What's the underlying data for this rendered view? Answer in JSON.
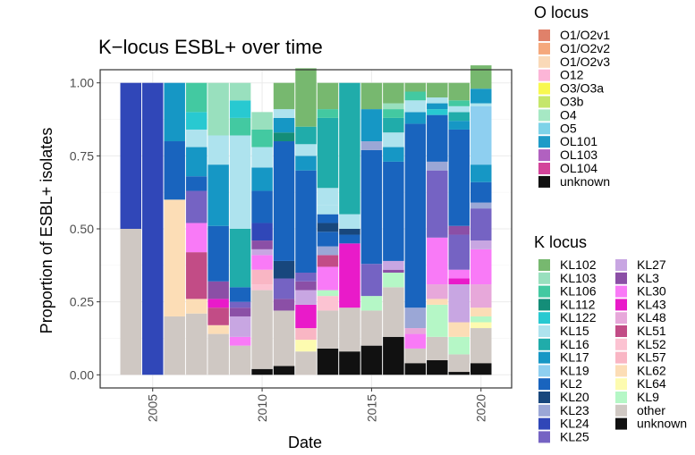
{
  "chart_data": {
    "type": "bar",
    "stacked": true,
    "title": "K−locus ESBL+ over time",
    "xlabel": "Date",
    "ylabel": "Proportion of ESBL+ isolates",
    "xlim": [
      2002.6,
      2021.4
    ],
    "ylim": [
      -0.045,
      1.045
    ],
    "x_ticks": [
      2005,
      2010,
      2015,
      2020
    ],
    "x_tick_labels": [
      "2005",
      "2010",
      "2015",
      "2020"
    ],
    "y_ticks": [
      0,
      0.25,
      0.5,
      0.75,
      1
    ],
    "y_tick_labels": [
      "0.00",
      "0.25",
      "0.50",
      "0.75",
      "1.00"
    ],
    "legend_o": {
      "title": "O locus",
      "items": [
        {
          "label": "O1/O2v1",
          "color": "#E0816A"
        },
        {
          "label": "O1/O2v2",
          "color": "#F5A87C"
        },
        {
          "label": "O1/O2v3",
          "color": "#FAD9B8"
        },
        {
          "label": "O12",
          "color": "#FCB5D7"
        },
        {
          "label": "O3/O3a",
          "color": "#F8F850"
        },
        {
          "label": "O3b",
          "color": "#C5E66B"
        },
        {
          "label": "O4",
          "color": "#A6E8C4"
        },
        {
          "label": "O5",
          "color": "#7ED3E8"
        },
        {
          "label": "OL101",
          "color": "#1E9BC7"
        },
        {
          "label": "OL103",
          "color": "#B161C0"
        },
        {
          "label": "OL104",
          "color": "#D3449A"
        },
        {
          "label": "unknown",
          "color": "#111111"
        }
      ]
    },
    "legend_k": {
      "title": "K locus",
      "columns": [
        [
          {
            "label": "KL102",
            "color": "#77B86F"
          },
          {
            "label": "KL103",
            "color": "#99E0BE"
          },
          {
            "label": "KL106",
            "color": "#43C9A1"
          },
          {
            "label": "KL112",
            "color": "#148D78"
          },
          {
            "label": "KL122",
            "color": "#28C9D1"
          },
          {
            "label": "KL15",
            "color": "#AEE3EE"
          },
          {
            "label": "KL16",
            "color": "#20ACAA"
          },
          {
            "label": "KL17",
            "color": "#1697C5"
          },
          {
            "label": "KL19",
            "color": "#8ECFF0"
          },
          {
            "label": "KL2",
            "color": "#1964BE"
          },
          {
            "label": "KL20",
            "color": "#18477D"
          },
          {
            "label": "KL23",
            "color": "#9BA7D6"
          },
          {
            "label": "KL24",
            "color": "#3047B8"
          },
          {
            "label": "KL25",
            "color": "#7563C3"
          }
        ],
        [
          {
            "label": "KL27",
            "color": "#C8A6E2"
          },
          {
            "label": "KL3",
            "color": "#8B4FA6"
          },
          {
            "label": "KL30",
            "color": "#F97AF7"
          },
          {
            "label": "KL43",
            "color": "#E91BC9"
          },
          {
            "label": "KL48",
            "color": "#E7A8DA"
          },
          {
            "label": "KL51",
            "color": "#C24C86"
          },
          {
            "label": "KL52",
            "color": "#FCC3D2"
          },
          {
            "label": "KL57",
            "color": "#F9B6C4"
          },
          {
            "label": "KL62",
            "color": "#FCDDB6"
          },
          {
            "label": "KL64",
            "color": "#FDFBB0"
          },
          {
            "label": "KL9",
            "color": "#B5F7C6"
          },
          {
            "label": "other",
            "color": "#CFC8C3"
          },
          {
            "label": "unknown",
            "color": "#111111"
          }
        ]
      ]
    },
    "bars": [
      {
        "x": 2004,
        "segments": [
          [
            "other",
            0.5
          ],
          [
            "KL24",
            0.5
          ]
        ]
      },
      {
        "x": 2005,
        "segments": [
          [
            "KL24",
            1.0
          ]
        ]
      },
      {
        "x": 2006,
        "segments": [
          [
            "other",
            0.2
          ],
          [
            "KL62",
            0.4
          ],
          [
            "KL2",
            0.2
          ],
          [
            "KL17",
            0.2
          ]
        ]
      },
      {
        "x": 2007,
        "segments": [
          [
            "other",
            0.21
          ],
          [
            "KL62",
            0.05
          ],
          [
            "KL51",
            0.16
          ],
          [
            "KL30",
            0.1
          ],
          [
            "KL25",
            0.11
          ],
          [
            "KL2",
            0.05
          ],
          [
            "KL17",
            0.1
          ],
          [
            "KL15",
            0.06
          ],
          [
            "KL122",
            0.06
          ],
          [
            "KL106",
            0.1
          ]
        ]
      },
      {
        "x": 2008,
        "segments": [
          [
            "other",
            0.14
          ],
          [
            "KL62",
            0.03
          ],
          [
            "KL51",
            0.06
          ],
          [
            "KL43",
            0.03
          ],
          [
            "KL3",
            0.06
          ],
          [
            "KL2",
            0.19
          ],
          [
            "KL17",
            0.21
          ],
          [
            "KL15",
            0.1
          ],
          [
            "KL103",
            0.18
          ]
        ]
      },
      {
        "x": 2009,
        "segments": [
          [
            "other",
            0.1
          ],
          [
            "KL30",
            0.03
          ],
          [
            "KL27",
            0.07
          ],
          [
            "KL3",
            0.03
          ],
          [
            "KL25",
            0.02
          ],
          [
            "KL2",
            0.05
          ],
          [
            "KL16",
            0.2
          ],
          [
            "KL15",
            0.32
          ],
          [
            "KL106",
            0.06
          ],
          [
            "KL122",
            0.06
          ],
          [
            "KL103",
            0.06
          ]
        ]
      },
      {
        "x": 2010,
        "segments": [
          [
            "unknown",
            0.02
          ],
          [
            "other",
            0.27
          ],
          [
            "KL52",
            0.02
          ],
          [
            "KL57",
            0.05
          ],
          [
            "KL30",
            0.05
          ],
          [
            "KL27",
            0.02
          ],
          [
            "KL3",
            0.03
          ],
          [
            "KL24",
            0.06
          ],
          [
            "KL2",
            0.11
          ],
          [
            "KL17",
            0.08
          ],
          [
            "KL15",
            0.07
          ],
          [
            "KL106",
            0.06
          ],
          [
            "KL103",
            0.06
          ]
        ]
      },
      {
        "x": 2011,
        "segments": [
          [
            "unknown",
            0.03
          ],
          [
            "other",
            0.19
          ],
          [
            "KL3",
            0.04
          ],
          [
            "KL25",
            0.07
          ],
          [
            "KL20",
            0.06
          ],
          [
            "KL2",
            0.41
          ],
          [
            "KL112",
            0.03
          ],
          [
            "KL17",
            0.05
          ],
          [
            "KL15",
            0.03
          ],
          [
            "KL102",
            0.09
          ]
        ]
      },
      {
        "x": 2012,
        "segments": [
          [
            "other",
            0.08
          ],
          [
            "KL64",
            0.04
          ],
          [
            "KL57",
            0.04
          ],
          [
            "KL43",
            0.08
          ],
          [
            "KL27",
            0.05
          ],
          [
            "KL3",
            0.03
          ],
          [
            "KL25",
            0.03
          ],
          [
            "KL2",
            0.35
          ],
          [
            "KL17",
            0.05
          ],
          [
            "KL15",
            0.04
          ],
          [
            "KL16",
            0.06
          ],
          [
            "KL102",
            0.2
          ]
        ]
      },
      {
        "x": 2013,
        "segments": [
          [
            "unknown",
            0.09
          ],
          [
            "other",
            0.13
          ],
          [
            "KL52",
            0.05
          ],
          [
            "KL9",
            0.02
          ],
          [
            "KL30",
            0.08
          ],
          [
            "KL51",
            0.04
          ],
          [
            "KL23",
            0.03
          ],
          [
            "KL2",
            0.05
          ],
          [
            "KL20",
            0.03
          ],
          [
            "KL2",
            0.03
          ],
          [
            "KL15",
            0.03
          ],
          [
            "KL15",
            0.06
          ],
          [
            "KL16",
            0.24
          ],
          [
            "KL106",
            0.03
          ],
          [
            "KL102",
            0.09
          ]
        ]
      },
      {
        "x": 2014,
        "segments": [
          [
            "unknown",
            0.08
          ],
          [
            "other",
            0.15
          ],
          [
            "KL43",
            0.22
          ],
          [
            "KL2",
            0.03
          ],
          [
            "KL20",
            0.02
          ],
          [
            "KL15",
            0.05
          ],
          [
            "KL16",
            0.45
          ]
        ]
      },
      {
        "x": 2015,
        "segments": [
          [
            "unknown",
            0.1
          ],
          [
            "other",
            0.12
          ],
          [
            "KL9",
            0.05
          ],
          [
            "KL25",
            0.11
          ],
          [
            "KL2",
            0.39
          ],
          [
            "KL23",
            0.03
          ],
          [
            "KL17",
            0.11
          ],
          [
            "KL102",
            0.09
          ]
        ]
      },
      {
        "x": 2016,
        "segments": [
          [
            "unknown",
            0.13
          ],
          [
            "other",
            0.17
          ],
          [
            "KL9",
            0.05
          ],
          [
            "KL3",
            0.01
          ],
          [
            "KL27",
            0.03
          ],
          [
            "KL2",
            0.34
          ],
          [
            "KL17",
            0.05
          ],
          [
            "KL15",
            0.05
          ],
          [
            "KL16",
            0.05
          ],
          [
            "KL106",
            0.03
          ],
          [
            "KL103",
            0.02
          ],
          [
            "KL102",
            0.07
          ]
        ]
      },
      {
        "x": 2017,
        "segments": [
          [
            "unknown",
            0.04
          ],
          [
            "other",
            0.05
          ],
          [
            "KL30",
            0.05
          ],
          [
            "KL48",
            0.02
          ],
          [
            "KL23",
            0.07
          ],
          [
            "KL2",
            0.63
          ],
          [
            "KL17",
            0.04
          ],
          [
            "KL15",
            0.04
          ],
          [
            "KL106",
            0.03
          ],
          [
            "KL102",
            0.03
          ]
        ]
      },
      {
        "x": 2018,
        "segments": [
          [
            "unknown",
            0.05
          ],
          [
            "other",
            0.08
          ],
          [
            "KL9",
            0.11
          ],
          [
            "KL62",
            0.02
          ],
          [
            "KL48",
            0.05
          ],
          [
            "KL30",
            0.16
          ],
          [
            "KL25",
            0.23
          ],
          [
            "KL23",
            0.03
          ],
          [
            "KL2",
            0.16
          ],
          [
            "KL122",
            0.02
          ],
          [
            "KL17",
            0.02
          ],
          [
            "KL15",
            0.02
          ],
          [
            "KL102",
            0.05
          ]
        ]
      },
      {
        "x": 2019,
        "segments": [
          [
            "unknown",
            0.01
          ],
          [
            "other",
            0.06
          ],
          [
            "KL9",
            0.06
          ],
          [
            "KL62",
            0.05
          ],
          [
            "KL27",
            0.13
          ],
          [
            "KL43",
            0.02
          ],
          [
            "KL30",
            0.03
          ],
          [
            "KL25",
            0.12
          ],
          [
            "KL3",
            0.03
          ],
          [
            "KL2",
            0.33
          ],
          [
            "KL17",
            0.03
          ],
          [
            "KL16",
            0.03
          ],
          [
            "KL15",
            0.02
          ],
          [
            "KL106",
            0.02
          ],
          [
            "KL102",
            0.06
          ]
        ]
      },
      {
        "x": 2020,
        "segments": [
          [
            "unknown",
            0.04
          ],
          [
            "other",
            0.12
          ],
          [
            "KL64",
            0.02
          ],
          [
            "KL9",
            0.02
          ],
          [
            "KL62",
            0.03
          ],
          [
            "KL48",
            0.08
          ],
          [
            "KL30",
            0.12
          ],
          [
            "KL27",
            0.03
          ],
          [
            "KL25",
            0.11
          ],
          [
            "KL23",
            0.02
          ],
          [
            "KL2",
            0.07
          ],
          [
            "KL17",
            0.06
          ],
          [
            "KL19",
            0.2
          ],
          [
            "KL15",
            0.01
          ],
          [
            "KL17",
            0.05
          ],
          [
            "KL102",
            0.08
          ]
        ]
      }
    ]
  }
}
